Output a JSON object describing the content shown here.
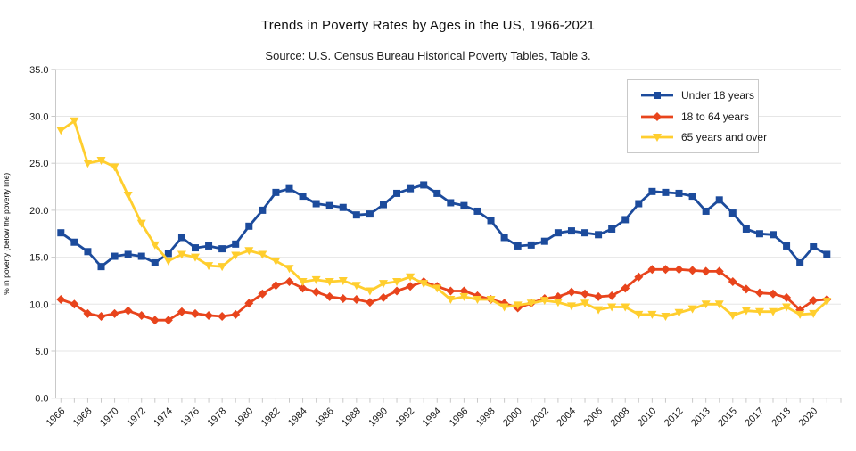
{
  "chart_data": {
    "type": "line",
    "title": "Trends in Poverty Rates by Ages in the US, 1966-2021",
    "subtitle": "Source: U.S. Census Bureau Historical Poverty Tables, Table 3.",
    "ylabel": "% in poverty (below the poverty line)",
    "xlabel": "",
    "grid": true,
    "legend_position": "top-right",
    "ylim": [
      0,
      35
    ],
    "y_ticks": [
      0,
      5,
      10,
      15,
      20,
      25,
      30,
      35
    ],
    "x": [
      "1966",
      "1967",
      "1968",
      "1969",
      "1970",
      "1971",
      "1972",
      "1973",
      "1974",
      "1975",
      "1976",
      "1977",
      "1978",
      "1979",
      "1980",
      "1981",
      "1982",
      "1983",
      "1984",
      "1985",
      "1986",
      "1987",
      "1988",
      "1989",
      "1990",
      "1991",
      "1992",
      "1993",
      "1994",
      "1995",
      "1996",
      "1997",
      "1998",
      "1999",
      "2000",
      "2001",
      "2002",
      "2003",
      "2004",
      "2005",
      "2006",
      "2007",
      "2008",
      "2009",
      "2010",
      "2011",
      "2012",
      "2013",
      "2013",
      "2014",
      "2015",
      "2016",
      "2017",
      "2017",
      "2018",
      "2019",
      "2020",
      "2021"
    ],
    "x_tick_labels": [
      "1966",
      "1968",
      "1970",
      "1972",
      "1974",
      "1976",
      "1978",
      "1980",
      "1982",
      "1984",
      "1986",
      "1988",
      "1990",
      "1992",
      "1994",
      "1996",
      "1998",
      "2000",
      "2002",
      "2004",
      "2006",
      "2008",
      "2010",
      "2012",
      "2013",
      "2015",
      "2017",
      "2018",
      "2020"
    ],
    "series": [
      {
        "name": "Under 18 years",
        "color": "#1C4B9C",
        "marker": "square",
        "values": [
          17.6,
          16.6,
          15.6,
          14.0,
          15.1,
          15.3,
          15.1,
          14.4,
          15.4,
          17.1,
          16.0,
          16.2,
          15.9,
          16.4,
          18.3,
          20.0,
          21.9,
          22.3,
          21.5,
          20.7,
          20.5,
          20.3,
          19.5,
          19.6,
          20.6,
          21.8,
          22.3,
          22.7,
          21.8,
          20.8,
          20.5,
          19.9,
          18.9,
          17.1,
          16.2,
          16.3,
          16.7,
          17.6,
          17.8,
          17.6,
          17.4,
          18.0,
          19.0,
          20.7,
          22.0,
          21.9,
          21.8,
          21.5,
          19.9,
          21.1,
          19.7,
          18.0,
          17.5,
          17.4,
          16.2,
          14.4,
          16.1,
          15.3
        ]
      },
      {
        "name": "18 to 64 years",
        "color": "#E8441C",
        "marker": "diamond",
        "values": [
          10.5,
          10.0,
          9.0,
          8.7,
          9.0,
          9.3,
          8.8,
          8.3,
          8.3,
          9.2,
          9.0,
          8.8,
          8.7,
          8.9,
          10.1,
          11.1,
          12.0,
          12.4,
          11.7,
          11.3,
          10.8,
          10.6,
          10.5,
          10.2,
          10.7,
          11.4,
          11.9,
          12.4,
          11.9,
          11.4,
          11.4,
          10.9,
          10.5,
          10.1,
          9.6,
          10.1,
          10.6,
          10.8,
          11.3,
          11.1,
          10.8,
          10.9,
          11.7,
          12.9,
          13.7,
          13.7,
          13.7,
          13.6,
          13.5,
          13.5,
          12.4,
          11.6,
          11.2,
          11.1,
          10.7,
          9.4,
          10.4,
          10.5
        ]
      },
      {
        "name": "65 years and over",
        "color": "#FFCE2E",
        "marker": "triangle-down",
        "values": [
          28.5,
          29.5,
          25.0,
          25.3,
          24.6,
          21.6,
          18.6,
          16.3,
          14.6,
          15.3,
          15.0,
          14.1,
          14.0,
          15.2,
          15.7,
          15.3,
          14.6,
          13.8,
          12.4,
          12.6,
          12.4,
          12.5,
          12.0,
          11.4,
          12.2,
          12.4,
          12.9,
          12.2,
          11.7,
          10.5,
          10.8,
          10.5,
          10.5,
          9.7,
          9.9,
          10.1,
          10.4,
          10.2,
          9.8,
          10.1,
          9.4,
          9.7,
          9.7,
          8.9,
          8.9,
          8.7,
          9.1,
          9.5,
          10.0,
          10.0,
          8.8,
          9.3,
          9.2,
          9.2,
          9.7,
          8.9,
          9.0,
          10.3
        ]
      }
    ]
  },
  "style": {
    "grid_color": "#e6e6e6",
    "axis_color": "#c9c9c9",
    "tick_label_color": "#1a1a1a",
    "background": "#ffffff"
  }
}
